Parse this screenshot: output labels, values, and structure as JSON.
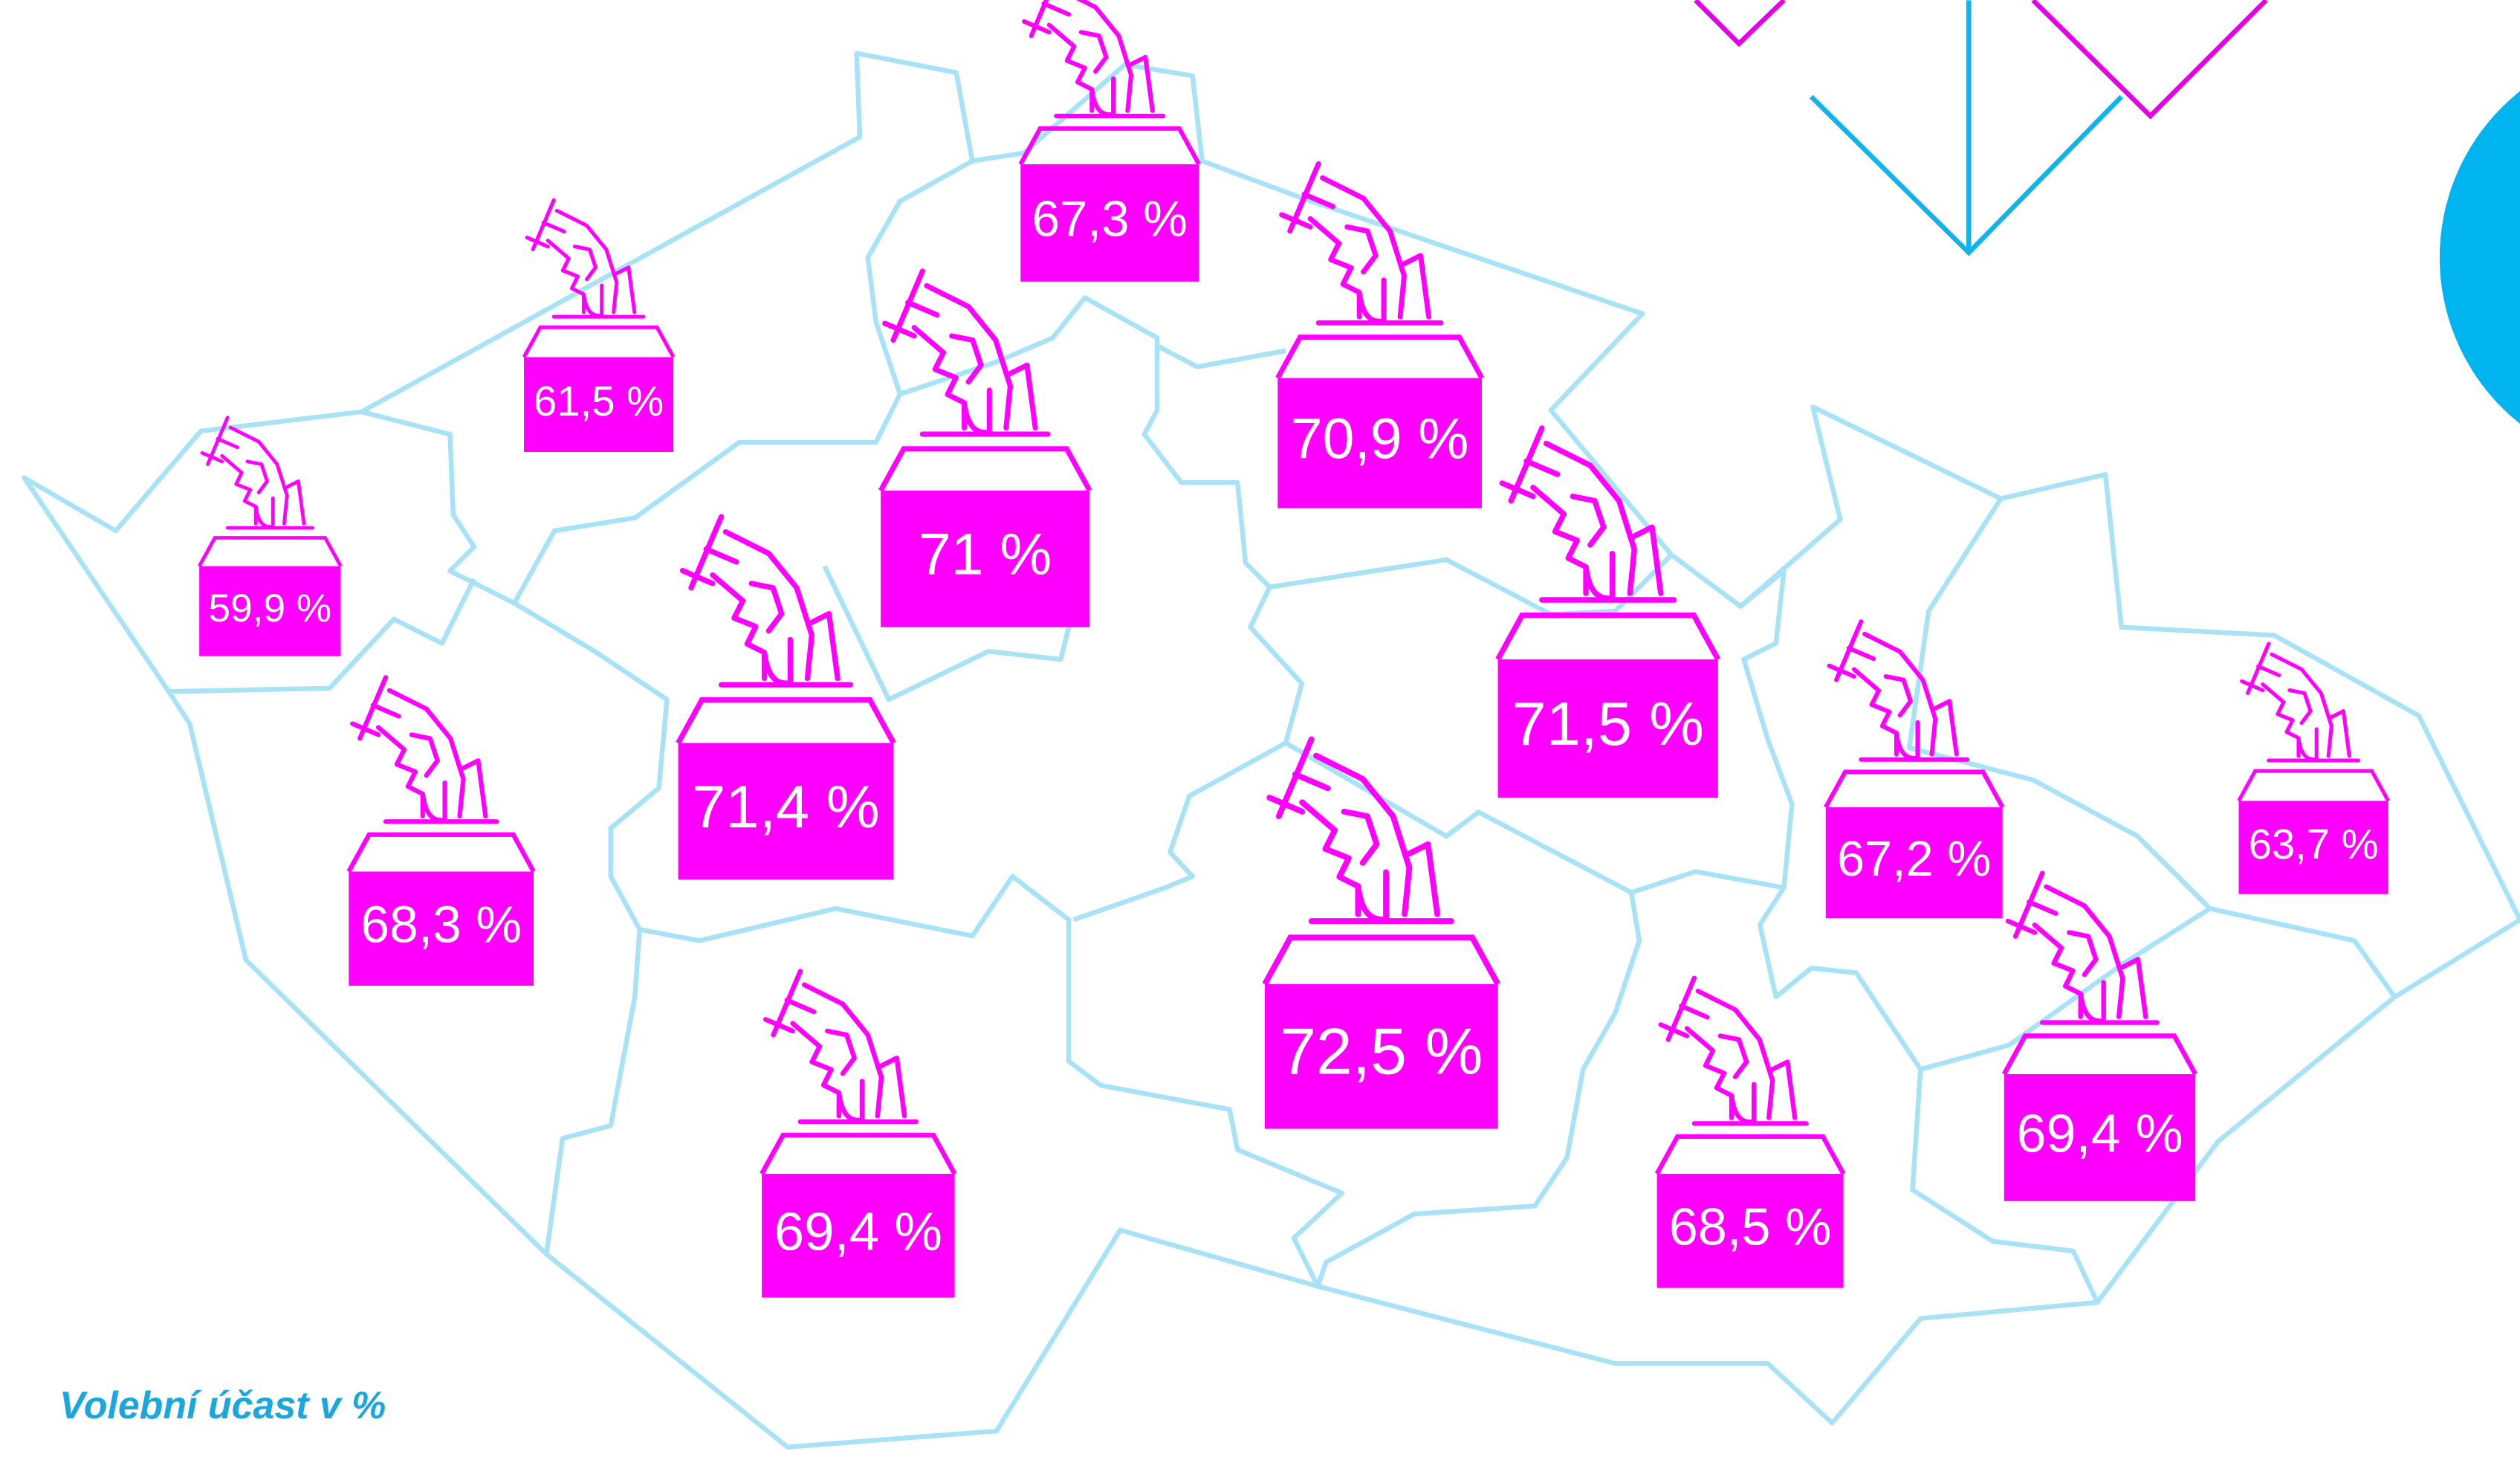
{
  "caption": "Volební účast v %",
  "regions": [
    {
      "label": "67,3 %"
    },
    {
      "label": "61,5 %"
    },
    {
      "label": "59,9 %"
    },
    {
      "label": "71 %"
    },
    {
      "label": "70,9 %"
    },
    {
      "label": "71,5 %"
    },
    {
      "label": "71,4 %"
    },
    {
      "label": "68,3 %"
    },
    {
      "label": "72,5 %"
    },
    {
      "label": "67,2 %"
    },
    {
      "label": "63,7 %"
    },
    {
      "label": "69,4 %"
    },
    {
      "label": "68,5 %"
    },
    {
      "label": "69,4 %"
    }
  ]
}
